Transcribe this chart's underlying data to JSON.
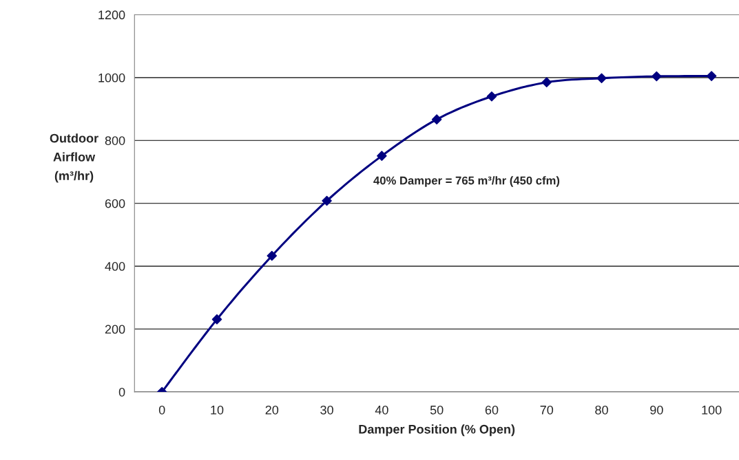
{
  "chart_data": {
    "type": "line",
    "xlabel": "Damper Position (% Open)",
    "ylabel": "Outdoor Airflow (m³/hr)",
    "categories": [
      "0",
      "10",
      "20",
      "30",
      "40",
      "50",
      "60",
      "70",
      "80",
      "90",
      "100"
    ],
    "series": [
      {
        "color": "#000080",
        "values": [
          0,
          231,
          433,
          608,
          751,
          867,
          940,
          985,
          998,
          1004,
          1005
        ]
      }
    ],
    "ylim": [
      0,
      1200
    ],
    "yticks": [
      0,
      200,
      400,
      600,
      800,
      1000,
      1200
    ],
    "grid": "y",
    "marker": "diamond",
    "line_style": "solid",
    "annotations": [
      "40% Damper = 765 m³/hr (450 cfm)"
    ]
  }
}
